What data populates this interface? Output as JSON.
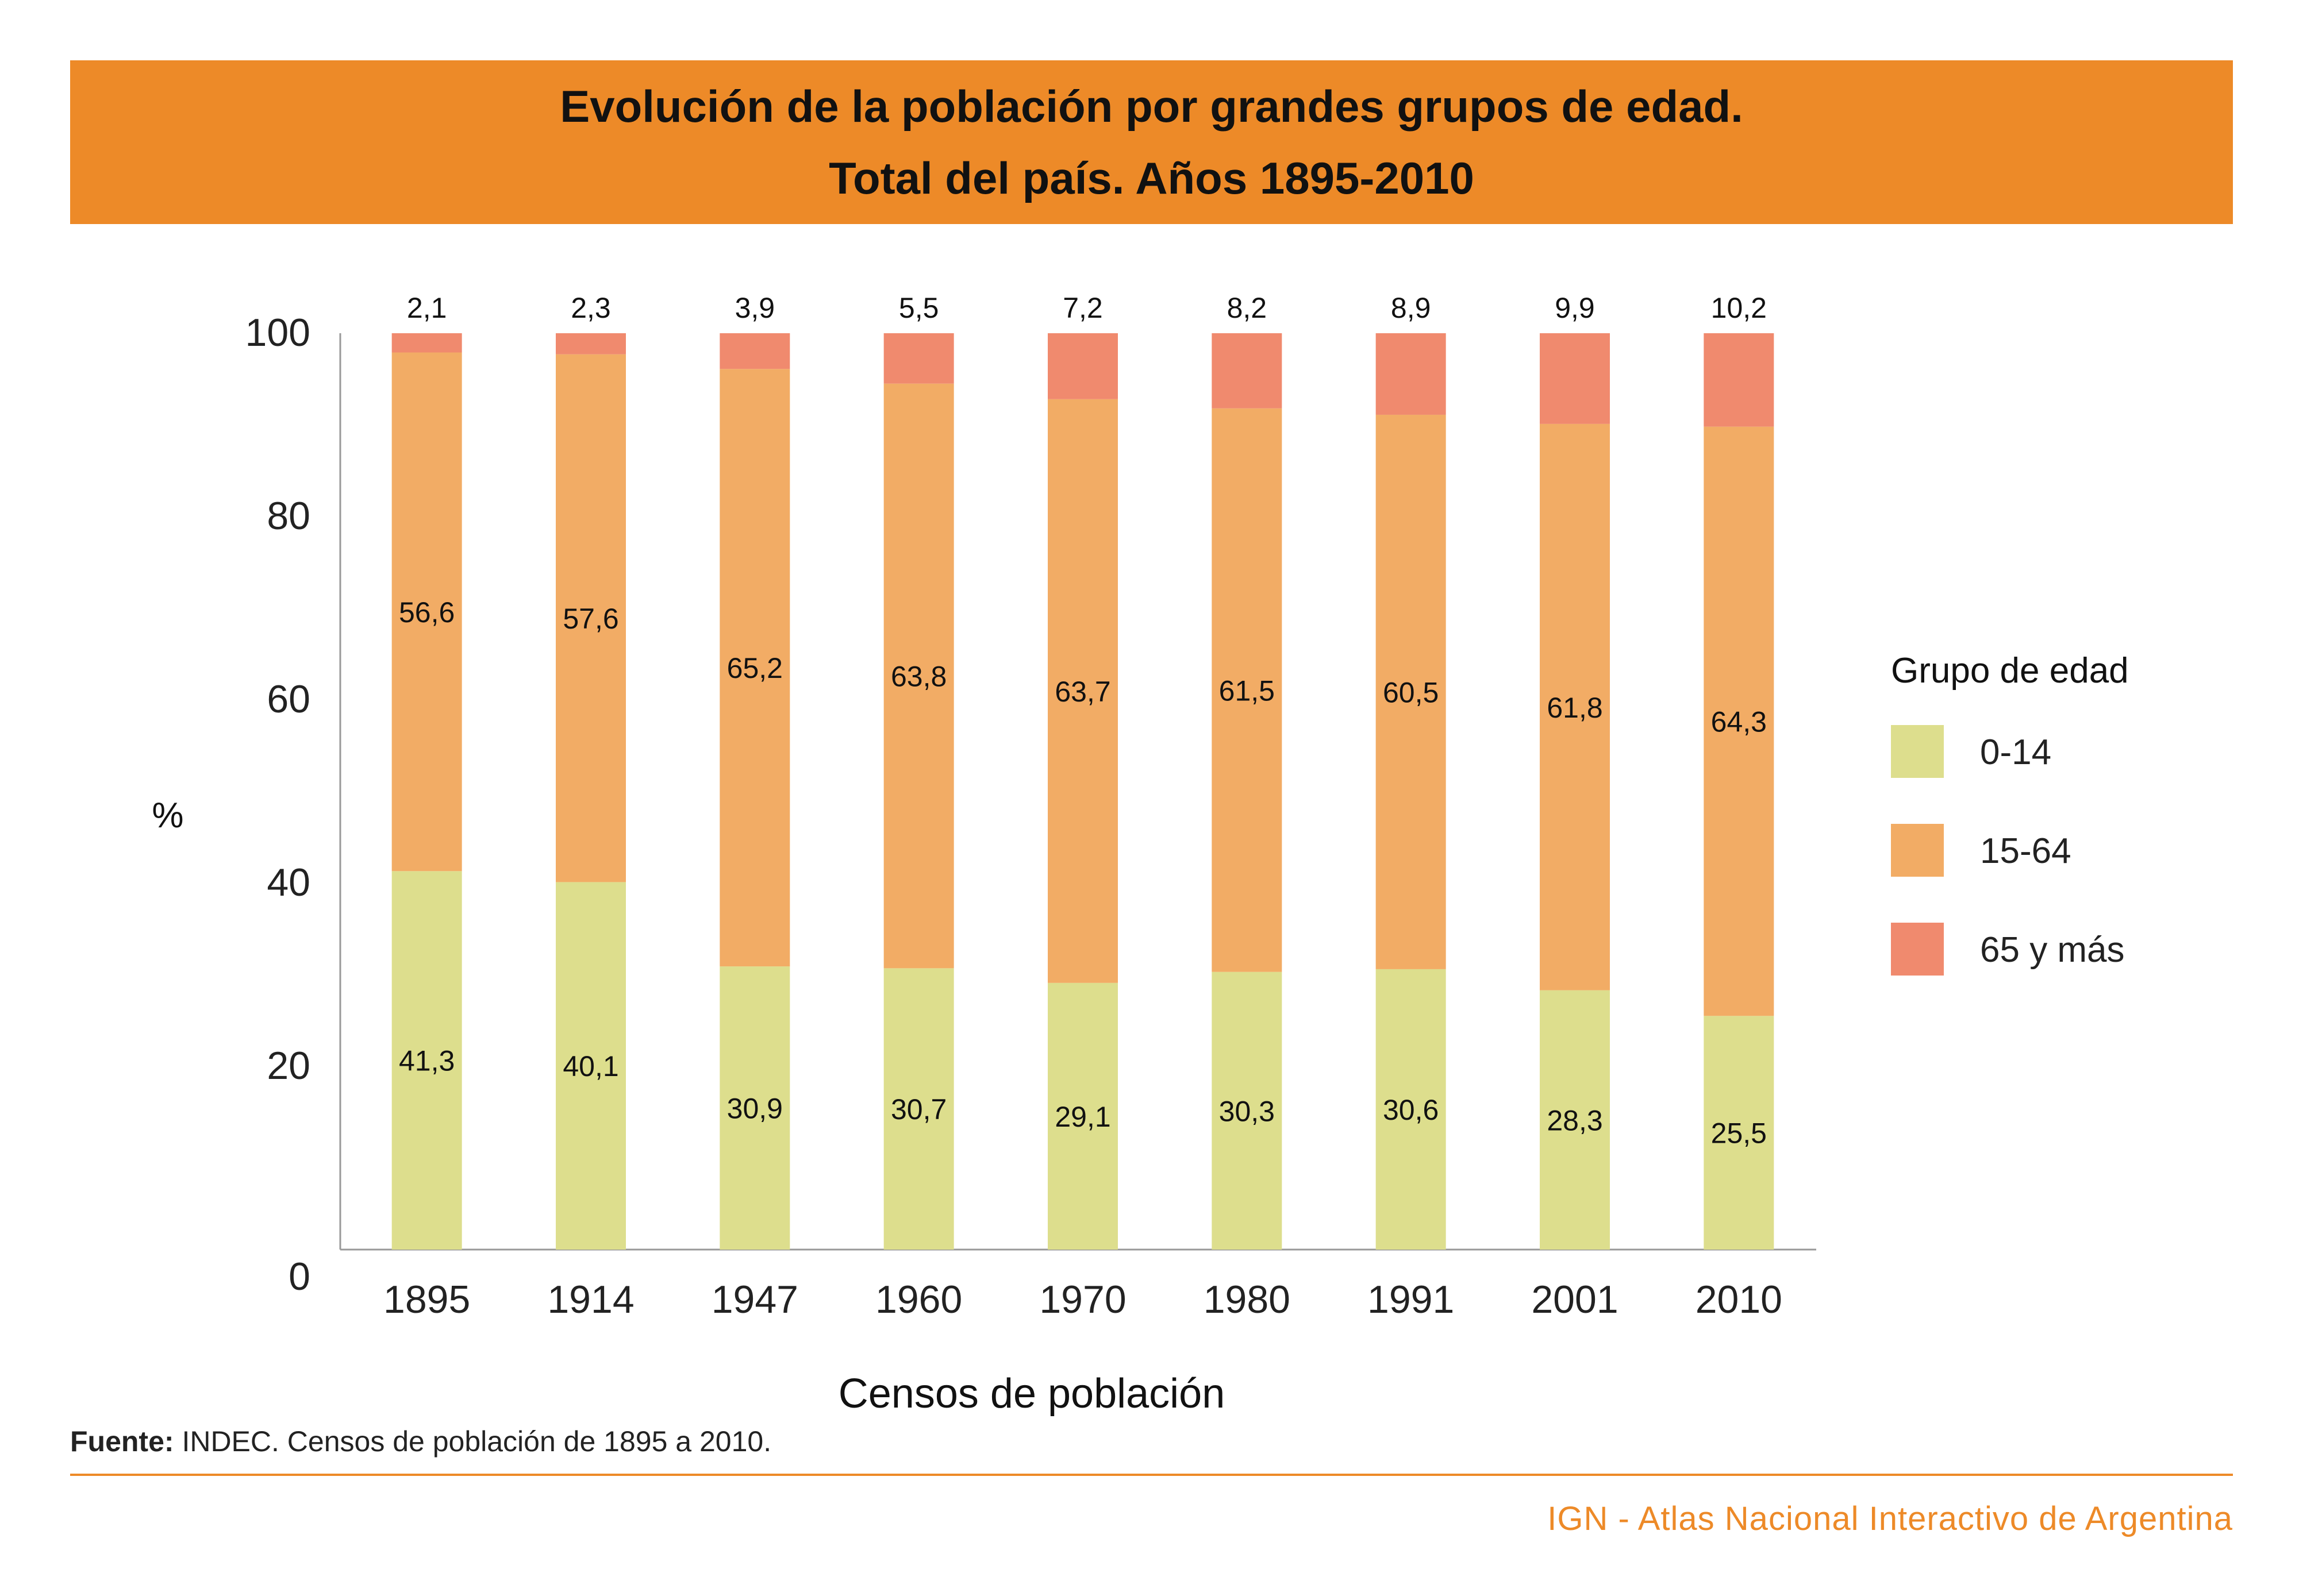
{
  "header": {
    "title_line1": "Evolución de la población por grandes grupos de edad.",
    "title_line2": "Total del país. Años 1895-2010"
  },
  "chart_data": {
    "type": "bar",
    "stacked": true,
    "categories": [
      "1895",
      "1914",
      "1947",
      "1960",
      "1970",
      "1980",
      "1991",
      "2001",
      "2010"
    ],
    "series": [
      {
        "name": "0-14",
        "color": "#DDDE8D",
        "values": [
          41.3,
          40.1,
          30.9,
          30.7,
          29.1,
          30.3,
          30.6,
          28.3,
          25.5
        ],
        "labels": [
          "41,3",
          "40,1",
          "30,9",
          "30,7",
          "29,1",
          "30,3",
          "30,6",
          "28,3",
          "25,5"
        ]
      },
      {
        "name": "15-64",
        "color": "#F2AC65",
        "values": [
          56.6,
          57.6,
          65.2,
          63.8,
          63.7,
          61.5,
          60.5,
          61.8,
          64.3
        ],
        "labels": [
          "56,6",
          "57,6",
          "65,2",
          "63,8",
          "63,7",
          "61,5",
          "60,5",
          "61,8",
          "64,3"
        ]
      },
      {
        "name": "65 y más",
        "color": "#F08A6E",
        "values": [
          2.1,
          2.3,
          3.9,
          5.5,
          7.2,
          8.2,
          8.9,
          9.9,
          10.2
        ],
        "labels": [
          "2,1",
          "2,3",
          "3,9",
          "5,5",
          "7,2",
          "8,2",
          "8,9",
          "9,9",
          "10,2"
        ]
      }
    ],
    "ylabel": "%",
    "xlabel": "Censos de población",
    "ylim": [
      0,
      100
    ],
    "yticks": [
      "0",
      "20",
      "40",
      "60",
      "80",
      "100"
    ],
    "legend_title": "Grupo de edad",
    "legend_position": "right",
    "grid": false
  },
  "footer": {
    "source_label": "Fuente:",
    "source_text": " INDEC. Censos de población de 1895 a 2010.",
    "credit": "IGN - Atlas Nacional Interactivo de Argentina"
  },
  "colors": {
    "accent": "#ED8A28"
  }
}
